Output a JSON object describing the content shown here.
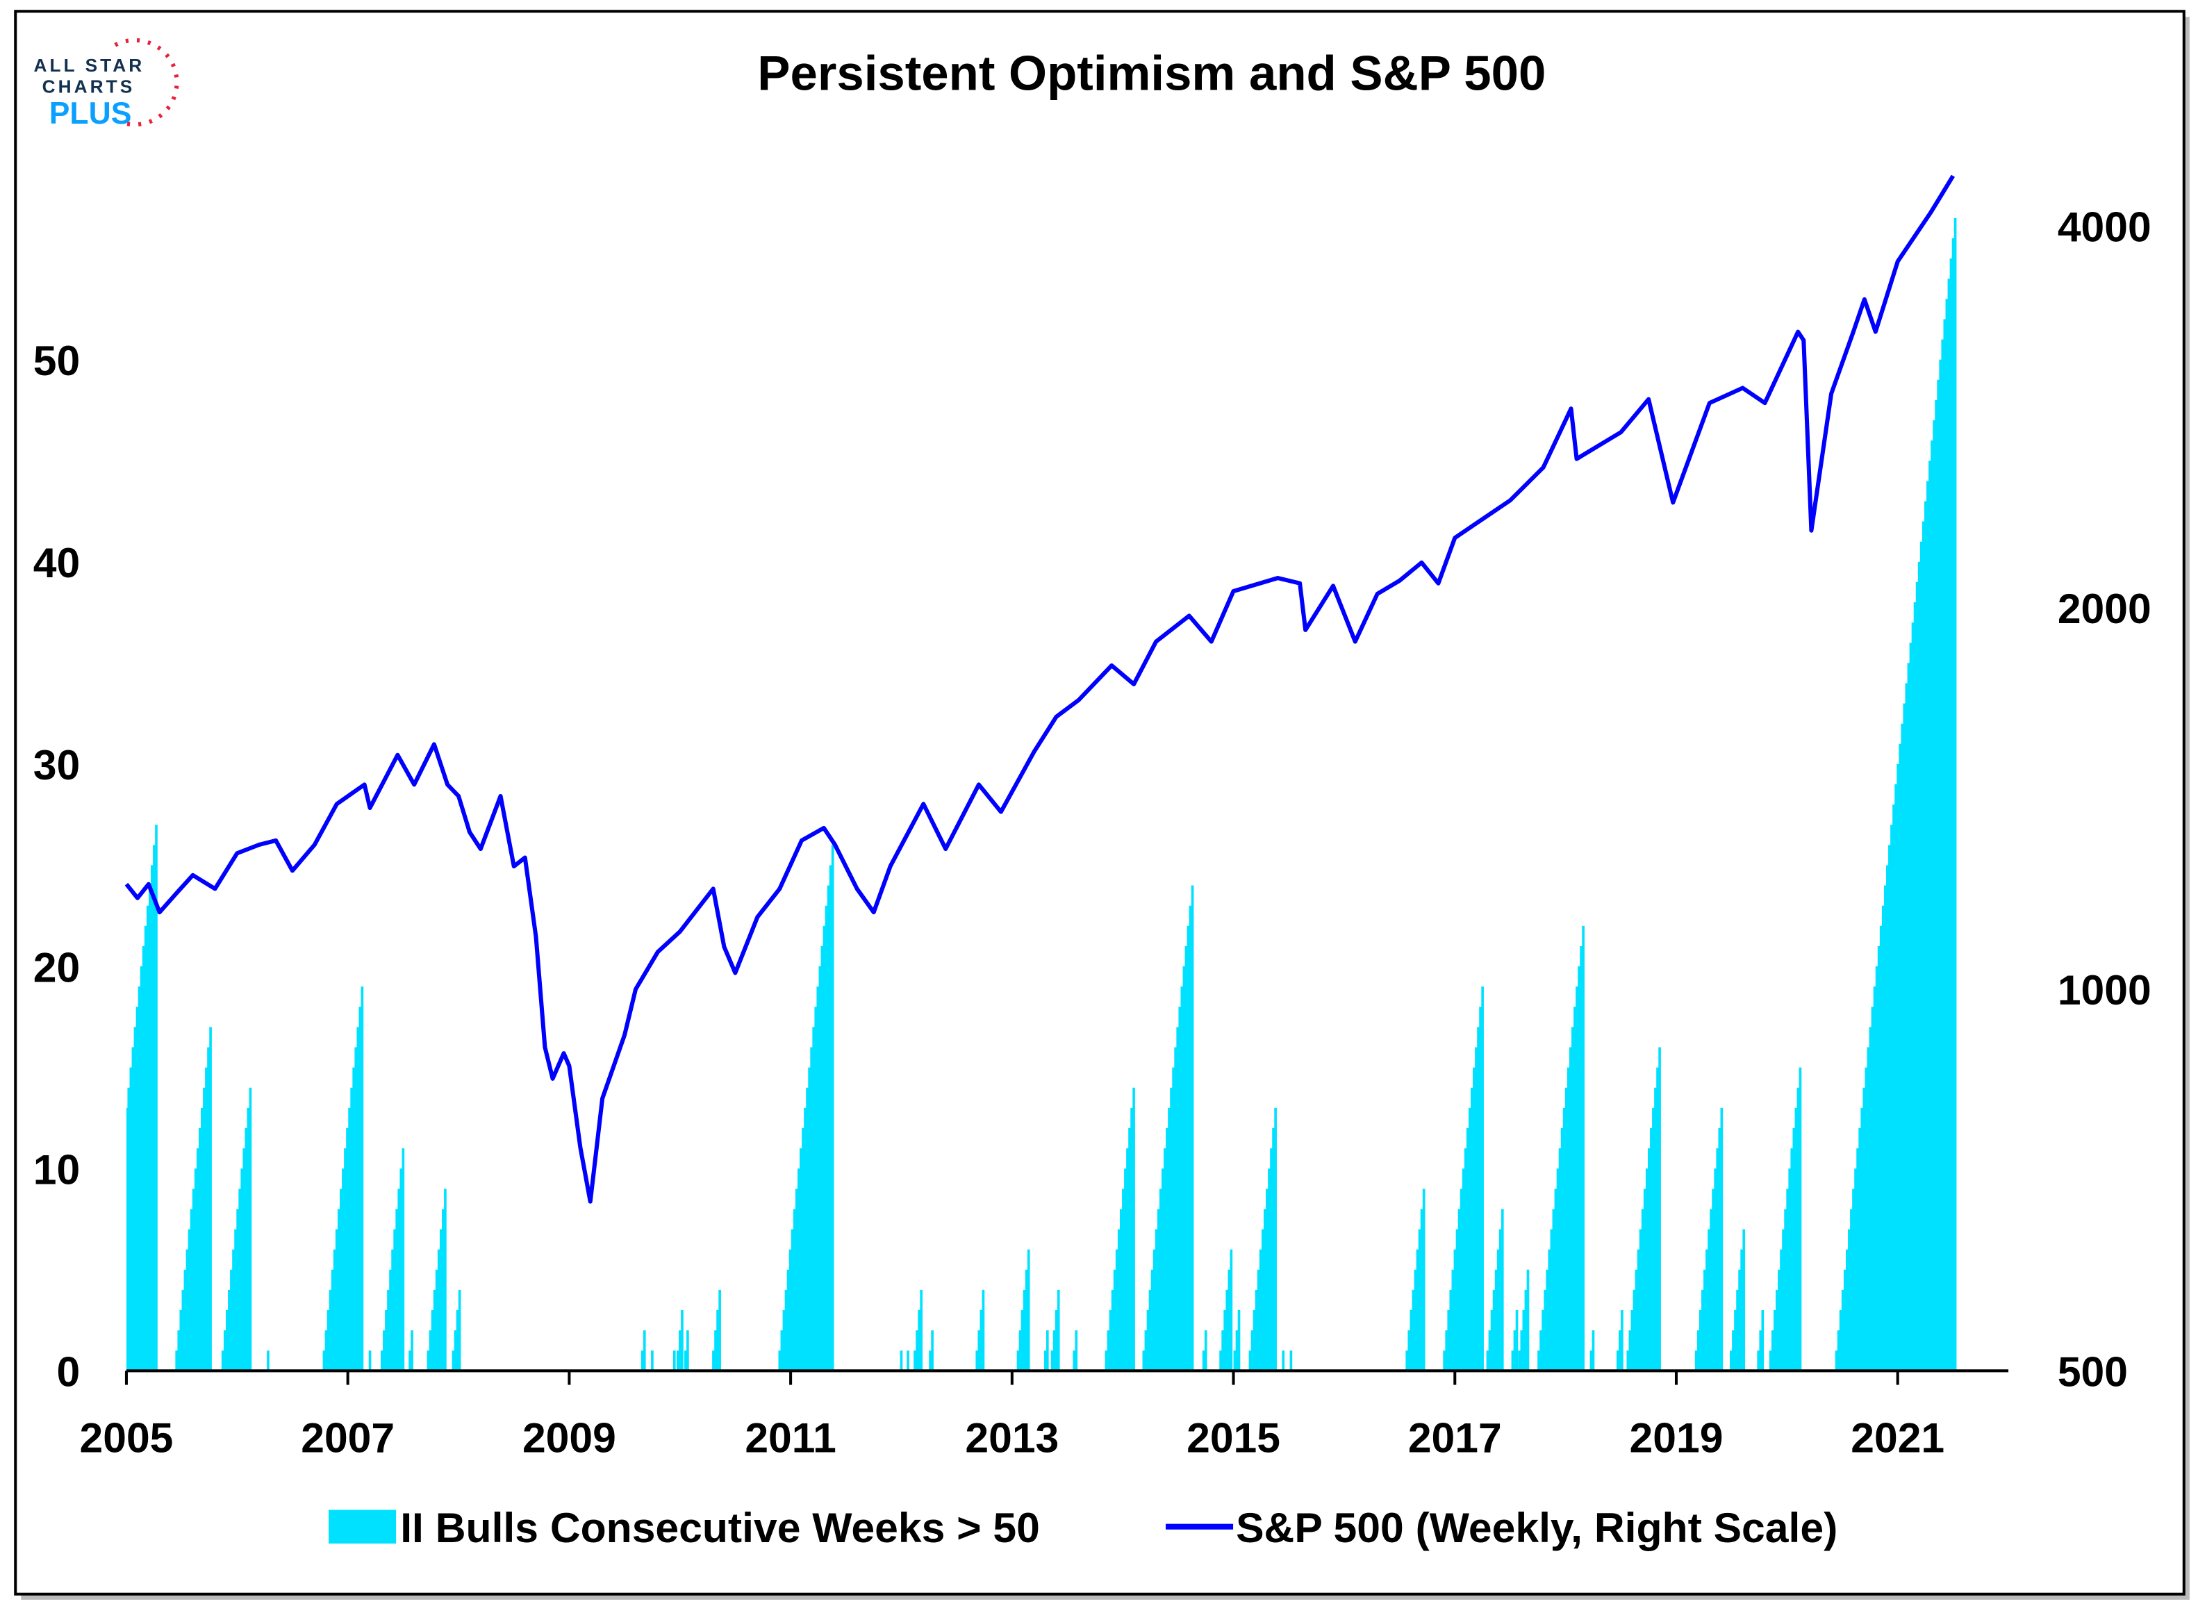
{
  "logo": {
    "line1": "ALL STAR",
    "line2": "CHARTS",
    "line3": "PLUS"
  },
  "chart_data": {
    "type": "bar+line",
    "title": "Persistent Optimism and S&P 500",
    "x_range": [
      2005,
      2022
    ],
    "x_ticks": [
      "2005",
      "2007",
      "2009",
      "2011",
      "2013",
      "2015",
      "2017",
      "2019",
      "2021"
    ],
    "left_axis": {
      "range": [
        0,
        60
      ],
      "ticks": [
        "0",
        "10",
        "20",
        "30",
        "40",
        "50"
      ]
    },
    "right_axis": {
      "scale": "log",
      "range": [
        500,
        4530
      ],
      "ticks": [
        "500",
        "1000",
        "2000",
        "4000"
      ]
    },
    "legend": {
      "placement": "bottom",
      "bars_label": "II Bulls Consecutive Weeks > 50",
      "line_label": "S&P 500 (Weekly, Right Scale)"
    },
    "colors": {
      "bars": "#00E1FF",
      "line": "#0000FF"
    },
    "bar_series_note": "weekly counter; each run counts 1..peak weeks ending at 'end'",
    "bar_runs": [
      {
        "end": 2005.27,
        "peak": 27
      },
      {
        "end": 2005.76,
        "peak": 17
      },
      {
        "end": 2006.12,
        "peak": 14
      },
      {
        "end": 2006.28,
        "peak": 1
      },
      {
        "end": 2007.13,
        "peak": 19
      },
      {
        "end": 2007.2,
        "peak": 1
      },
      {
        "end": 2007.5,
        "peak": 11
      },
      {
        "end": 2007.58,
        "peak": 2
      },
      {
        "end": 2007.88,
        "peak": 9
      },
      {
        "end": 2008.01,
        "peak": 4
      },
      {
        "end": 2009.68,
        "peak": 2
      },
      {
        "end": 2009.75,
        "peak": 1
      },
      {
        "end": 2009.95,
        "peak": 1
      },
      {
        "end": 2010.02,
        "peak": 3
      },
      {
        "end": 2010.07,
        "peak": 2
      },
      {
        "end": 2010.36,
        "peak": 4
      },
      {
        "end": 2011.38,
        "peak": 26
      },
      {
        "end": 2012.0,
        "peak": 1
      },
      {
        "end": 2012.06,
        "peak": 1
      },
      {
        "end": 2012.18,
        "peak": 4
      },
      {
        "end": 2012.28,
        "peak": 2
      },
      {
        "end": 2012.74,
        "peak": 4
      },
      {
        "end": 2013.15,
        "peak": 6
      },
      {
        "end": 2013.32,
        "peak": 2
      },
      {
        "end": 2013.42,
        "peak": 4
      },
      {
        "end": 2013.58,
        "peak": 2
      },
      {
        "end": 2014.1,
        "peak": 14
      },
      {
        "end": 2014.63,
        "peak": 24
      },
      {
        "end": 2014.75,
        "peak": 2
      },
      {
        "end": 2014.98,
        "peak": 6
      },
      {
        "end": 2015.05,
        "peak": 3
      },
      {
        "end": 2015.38,
        "peak": 13
      },
      {
        "end": 2015.45,
        "peak": 1
      },
      {
        "end": 2015.52,
        "peak": 1
      },
      {
        "end": 2016.72,
        "peak": 9
      },
      {
        "end": 2017.25,
        "peak": 19
      },
      {
        "end": 2017.43,
        "peak": 8
      },
      {
        "end": 2017.56,
        "peak": 3
      },
      {
        "end": 2017.66,
        "peak": 5
      },
      {
        "end": 2018.16,
        "peak": 22
      },
      {
        "end": 2018.25,
        "peak": 2
      },
      {
        "end": 2018.51,
        "peak": 3
      },
      {
        "end": 2018.85,
        "peak": 16
      },
      {
        "end": 2019.41,
        "peak": 13
      },
      {
        "end": 2019.61,
        "peak": 7
      },
      {
        "end": 2019.78,
        "peak": 3
      },
      {
        "end": 2020.12,
        "peak": 15
      },
      {
        "end": 2021.52,
        "peak": 57
      }
    ],
    "line_points": [
      [
        2005.0,
        1210
      ],
      [
        2005.1,
        1180
      ],
      [
        2005.2,
        1210
      ],
      [
        2005.3,
        1150
      ],
      [
        2005.45,
        1190
      ],
      [
        2005.6,
        1230
      ],
      [
        2005.8,
        1200
      ],
      [
        2006.0,
        1280
      ],
      [
        2006.2,
        1300
      ],
      [
        2006.35,
        1310
      ],
      [
        2006.5,
        1240
      ],
      [
        2006.7,
        1300
      ],
      [
        2006.9,
        1400
      ],
      [
        2007.15,
        1450
      ],
      [
        2007.2,
        1390
      ],
      [
        2007.45,
        1530
      ],
      [
        2007.6,
        1450
      ],
      [
        2007.78,
        1560
      ],
      [
        2007.9,
        1450
      ],
      [
        2008.0,
        1420
      ],
      [
        2008.1,
        1330
      ],
      [
        2008.2,
        1290
      ],
      [
        2008.38,
        1420
      ],
      [
        2008.5,
        1250
      ],
      [
        2008.6,
        1270
      ],
      [
        2008.7,
        1100
      ],
      [
        2008.78,
        900
      ],
      [
        2008.85,
        850
      ],
      [
        2008.95,
        890
      ],
      [
        2009.0,
        870
      ],
      [
        2009.1,
        750
      ],
      [
        2009.19,
        680
      ],
      [
        2009.3,
        820
      ],
      [
        2009.5,
        920
      ],
      [
        2009.6,
        1000
      ],
      [
        2009.8,
        1070
      ],
      [
        2010.0,
        1110
      ],
      [
        2010.3,
        1200
      ],
      [
        2010.4,
        1080
      ],
      [
        2010.5,
        1030
      ],
      [
        2010.7,
        1140
      ],
      [
        2010.9,
        1200
      ],
      [
        2011.1,
        1310
      ],
      [
        2011.3,
        1340
      ],
      [
        2011.4,
        1300
      ],
      [
        2011.6,
        1200
      ],
      [
        2011.75,
        1150
      ],
      [
        2011.9,
        1250
      ],
      [
        2012.2,
        1400
      ],
      [
        2012.4,
        1290
      ],
      [
        2012.7,
        1450
      ],
      [
        2012.9,
        1380
      ],
      [
        2013.2,
        1540
      ],
      [
        2013.4,
        1640
      ],
      [
        2013.6,
        1690
      ],
      [
        2013.9,
        1800
      ],
      [
        2014.1,
        1740
      ],
      [
        2014.3,
        1880
      ],
      [
        2014.6,
        1970
      ],
      [
        2014.8,
        1880
      ],
      [
        2015.0,
        2060
      ],
      [
        2015.4,
        2110
      ],
      [
        2015.6,
        2090
      ],
      [
        2015.65,
        1920
      ],
      [
        2015.9,
        2080
      ],
      [
        2016.1,
        1880
      ],
      [
        2016.3,
        2050
      ],
      [
        2016.5,
        2100
      ],
      [
        2016.7,
        2170
      ],
      [
        2016.85,
        2090
      ],
      [
        2017.0,
        2270
      ],
      [
        2017.5,
        2430
      ],
      [
        2017.8,
        2580
      ],
      [
        2018.05,
        2870
      ],
      [
        2018.1,
        2620
      ],
      [
        2018.5,
        2750
      ],
      [
        2018.75,
        2920
      ],
      [
        2018.97,
        2420
      ],
      [
        2019.3,
        2900
      ],
      [
        2019.6,
        2980
      ],
      [
        2019.8,
        2900
      ],
      [
        2020.1,
        3300
      ],
      [
        2020.15,
        3250
      ],
      [
        2020.22,
        2300
      ],
      [
        2020.4,
        2950
      ],
      [
        2020.6,
        3300
      ],
      [
        2020.7,
        3500
      ],
      [
        2020.8,
        3300
      ],
      [
        2021.0,
        3750
      ],
      [
        2021.3,
        4100
      ],
      [
        2021.5,
        4380
      ]
    ]
  }
}
